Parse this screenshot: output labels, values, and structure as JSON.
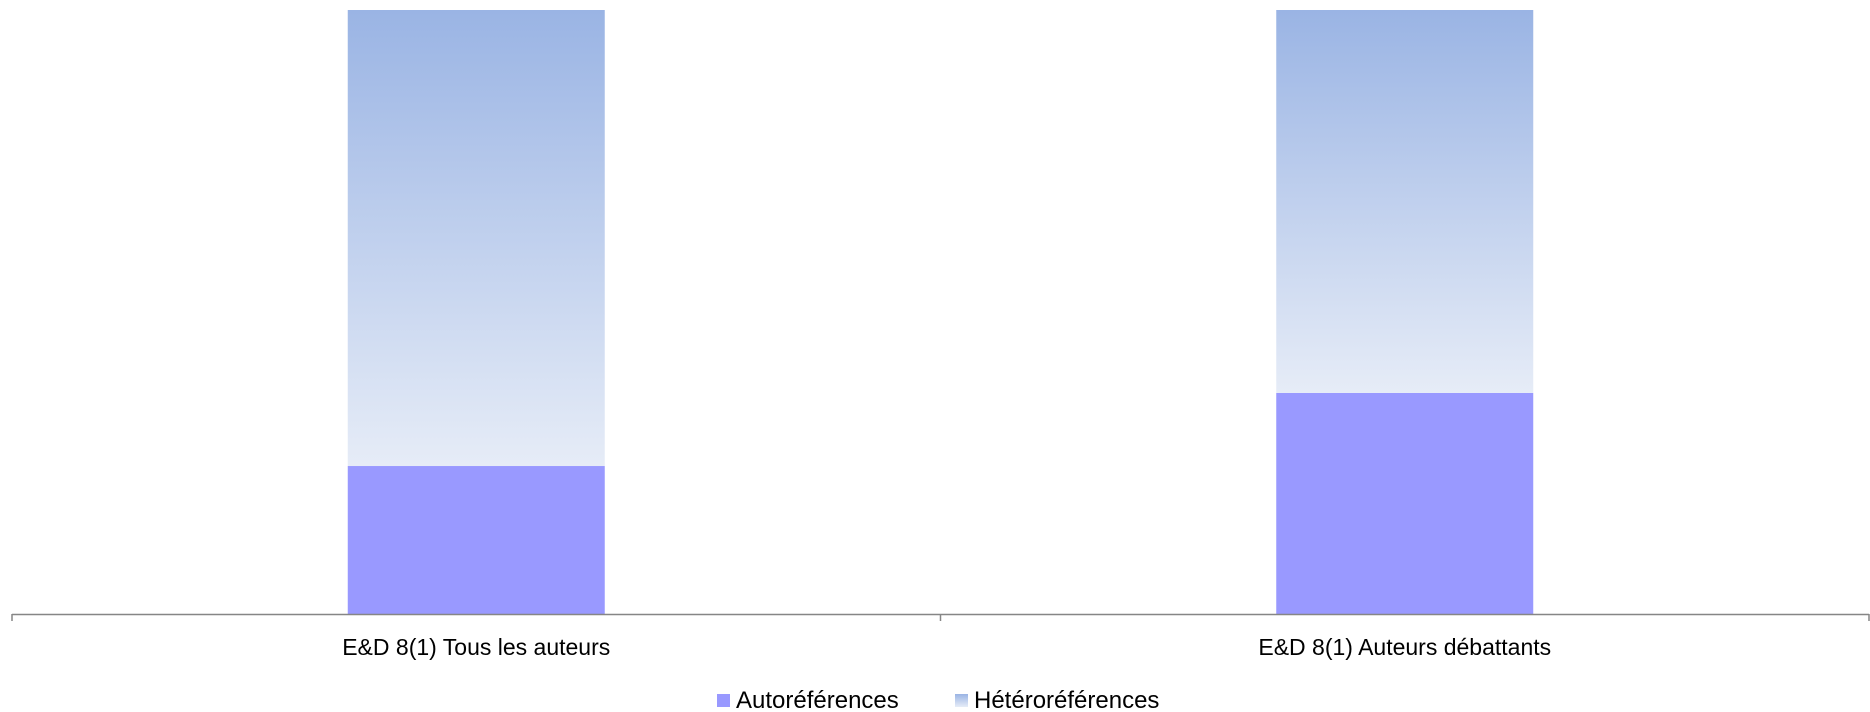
{
  "chart_data": {
    "type": "bar",
    "stacked": true,
    "percent_stacked": true,
    "categories": [
      "E&D 8(1) Tous les auteurs",
      "E&D 8(1) Auteurs débattants"
    ],
    "series": [
      {
        "name": "Autoréférences",
        "values": [
          0.245,
          0.366
        ],
        "color": "#9999ff"
      },
      {
        "name": "Hétéroréférences",
        "values": [
          0.755,
          0.634
        ],
        "color_top": "#9ab4e4",
        "color_bottom": "#e6ecf7"
      }
    ],
    "ylim": [
      0,
      1
    ],
    "grid": false,
    "legend_position": "bottom"
  }
}
